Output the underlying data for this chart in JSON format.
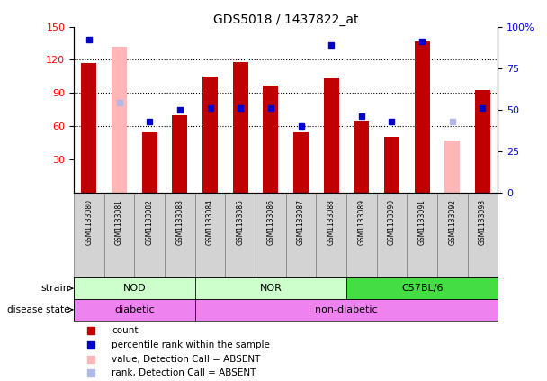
{
  "title": "GDS5018 / 1437822_at",
  "samples": [
    "GSM1133080",
    "GSM1133081",
    "GSM1133082",
    "GSM1133083",
    "GSM1133084",
    "GSM1133085",
    "GSM1133086",
    "GSM1133087",
    "GSM1133088",
    "GSM1133089",
    "GSM1133090",
    "GSM1133091",
    "GSM1133092",
    "GSM1133093"
  ],
  "counts": [
    117,
    0,
    55,
    70,
    105,
    118,
    97,
    55,
    103,
    65,
    50,
    137,
    0,
    93
  ],
  "absent_counts": [
    0,
    132,
    0,
    0,
    0,
    0,
    0,
    0,
    0,
    0,
    0,
    0,
    47,
    0
  ],
  "percentile_ranks": [
    92,
    0,
    43,
    50,
    51,
    51,
    51,
    40,
    89,
    46,
    43,
    91,
    0,
    51
  ],
  "absent_ranks": [
    0,
    54,
    0,
    0,
    0,
    0,
    0,
    0,
    0,
    0,
    0,
    0,
    43,
    0
  ],
  "count_color": "#c00000",
  "absent_count_color": "#ffb6b6",
  "rank_color": "#0000cc",
  "absent_rank_color": "#b0b8e8",
  "ylim_left": [
    0,
    150
  ],
  "ylim_right": [
    0,
    100
  ],
  "yticks_left": [
    30,
    60,
    90,
    120,
    150
  ],
  "yticks_right": [
    0,
    25,
    50,
    75,
    100
  ],
  "ytick_labels_right": [
    "0",
    "25",
    "50",
    "75",
    "100%"
  ],
  "bar_width": 0.5,
  "rank_marker_size": 5,
  "nod_nor_color": "#ccffcc",
  "c57_color": "#44dd44",
  "disease_color": "#ee82ee",
  "sample_bg_color": "#d3d3d3",
  "legend_items": [
    {
      "label": "count",
      "color": "#c00000"
    },
    {
      "label": "percentile rank within the sample",
      "color": "#0000cc"
    },
    {
      "label": "value, Detection Call = ABSENT",
      "color": "#ffb6b6"
    },
    {
      "label": "rank, Detection Call = ABSENT",
      "color": "#b0b8e8"
    }
  ]
}
